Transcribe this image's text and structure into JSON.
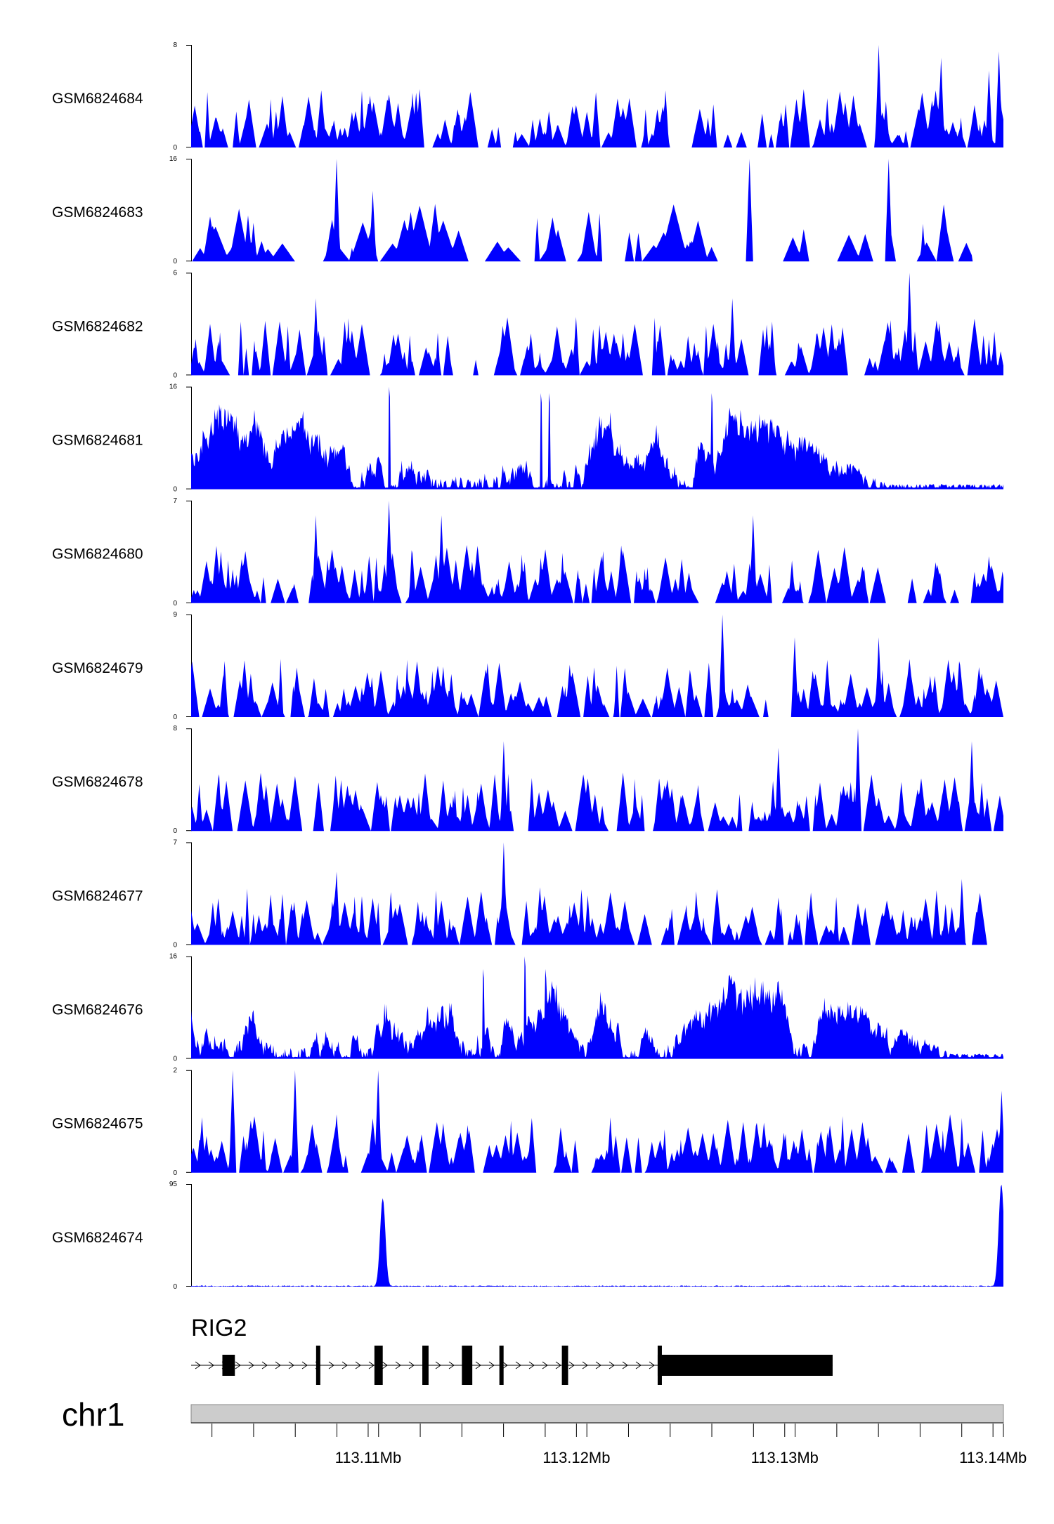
{
  "chart_data": {
    "type": "area",
    "title": "",
    "xlabel": "",
    "ylabel": "",
    "xlim_mb": [
      113.1015,
      113.1405
    ],
    "grid": false,
    "legend": "none",
    "colors": {
      "track_fill": "#0000ff",
      "axis": "#000000",
      "gene": "#000000",
      "chrom_bar": "#cccccc",
      "chrom_border": "#888888"
    },
    "tracks": [
      {
        "name": "GSM6824684",
        "ymax": 8,
        "peaks_mb": [
          113.1345,
          113.1375,
          113.1398,
          113.1403
        ],
        "peak_values": [
          8,
          7,
          6,
          7.5
        ],
        "profile": "sparse"
      },
      {
        "name": "GSM6824683",
        "ymax": 16,
        "peaks_mb": [
          113.1085,
          113.1102,
          113.1283,
          113.135
        ],
        "peak_values": [
          16,
          11,
          16,
          16
        ],
        "profile": "spiky-gaps",
        "end_mb": 113.139
      },
      {
        "name": "GSM6824682",
        "ymax": 6,
        "peaks_mb": [
          113.136,
          113.1275,
          113.1075
        ],
        "peak_values": [
          6,
          4.5,
          4.5
        ],
        "profile": "sparse"
      },
      {
        "name": "GSM6824681",
        "ymax": 16,
        "peaks_mb": [
          113.111,
          113.1183,
          113.1187,
          113.1265
        ],
        "peak_values": [
          16,
          15,
          15,
          15
        ],
        "profile": "dense-decay",
        "decay_from_mb": 113.128
      },
      {
        "name": "GSM6824680",
        "ymax": 7,
        "peaks_mb": [
          113.111,
          113.1075,
          113.1135,
          113.1285
        ],
        "peak_values": [
          7,
          6,
          6,
          6
        ],
        "profile": "sparse"
      },
      {
        "name": "GSM6824679",
        "ymax": 9,
        "peaks_mb": [
          113.127,
          113.1305,
          113.1345
        ],
        "peak_values": [
          9,
          7,
          7
        ],
        "profile": "sparse"
      },
      {
        "name": "GSM6824678",
        "ymax": 8,
        "peaks_mb": [
          113.1335,
          113.1297,
          113.139,
          113.1165
        ],
        "peak_values": [
          8,
          6.5,
          7,
          7
        ],
        "profile": "sparse"
      },
      {
        "name": "GSM6824677",
        "ymax": 7,
        "peaks_mb": [
          113.1165,
          113.1085,
          113.1385
        ],
        "peak_values": [
          7,
          5,
          4.5
        ],
        "profile": "sparse"
      },
      {
        "name": "GSM6824676",
        "ymax": 16,
        "peaks_mb": [
          113.1175,
          113.1155,
          113.1185
        ],
        "peak_values": [
          16,
          14,
          14
        ],
        "profile": "dense-decay",
        "decay_from_mb": 113.131
      },
      {
        "name": "GSM6824675",
        "ymax": 2,
        "peaks_mb": [
          113.1035,
          113.1065,
          113.1105,
          113.1404
        ],
        "peak_values": [
          2,
          2,
          2,
          1.6
        ],
        "profile": "sparse"
      },
      {
        "name": "GSM6824674",
        "ymax": 95,
        "peaks_mb": [
          113.1107,
          113.1404
        ],
        "peak_values": [
          82,
          95
        ],
        "profile": "peaks-only"
      }
    ],
    "gene": {
      "name": "RIG2",
      "strand": "+",
      "start_mb": 113.1015,
      "end_mb": 113.1323,
      "exons_mb": [
        [
          113.103,
          113.1036
        ],
        [
          113.1075,
          113.1077
        ],
        [
          113.1103,
          113.1107
        ],
        [
          113.1126,
          113.1129
        ],
        [
          113.1145,
          113.115
        ],
        [
          113.1163,
          113.1164
        ],
        [
          113.1193,
          113.1196
        ],
        [
          113.1239,
          113.1323
        ]
      ],
      "thin_exons_mb": [
        [
          113.1239,
          113.1241
        ]
      ]
    },
    "chromosome": {
      "name": "chr1",
      "ticks_mb": [
        113.1025,
        113.1045,
        113.1065,
        113.1085,
        113.1105,
        113.1125,
        113.1145,
        113.1165,
        113.1185,
        113.1205,
        113.1225,
        113.1245,
        113.1265,
        113.1285,
        113.1305,
        113.1325,
        113.1345,
        113.1365,
        113.1385,
        113.1405
      ],
      "labeled_ticks_mb": [
        113.11,
        113.12,
        113.13,
        113.14
      ],
      "tick_labels": [
        "113.11Mb",
        "113.12Mb",
        "113.13Mb",
        "113.14Mb"
      ]
    }
  }
}
